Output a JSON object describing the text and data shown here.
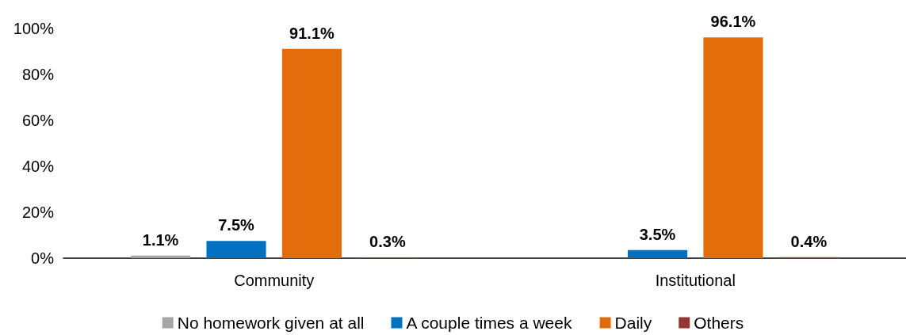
{
  "chart_data": {
    "type": "bar",
    "categories": [
      "Community",
      "Institutional"
    ],
    "series": [
      {
        "name": "No homework given at all",
        "color": "#a5a5a5",
        "values": [
          1.1,
          null
        ],
        "value_labels": [
          "1.1%",
          null
        ]
      },
      {
        "name": "A couple times a week",
        "color": "#0070c0",
        "values": [
          7.5,
          3.5
        ],
        "value_labels": [
          "7.5%",
          "3.5%"
        ]
      },
      {
        "name": "Daily",
        "color": "#e36c0a",
        "values": [
          91.1,
          96.1
        ],
        "value_labels": [
          "91.1%",
          "96.1%"
        ]
      },
      {
        "name": "Others",
        "color": "#943634",
        "values": [
          0.3,
          0.4
        ],
        "value_labels": [
          "0.3%",
          "0.4%"
        ]
      }
    ],
    "ylim": [
      0,
      100
    ],
    "yticks": [
      {
        "value": 0,
        "label": "0%"
      },
      {
        "value": 20,
        "label": "20%"
      },
      {
        "value": 40,
        "label": "40%"
      },
      {
        "value": 60,
        "label": "60%"
      },
      {
        "value": 80,
        "label": "80%"
      },
      {
        "value": 100,
        "label": "100%"
      }
    ],
    "grid": false,
    "legend": "bottom"
  }
}
